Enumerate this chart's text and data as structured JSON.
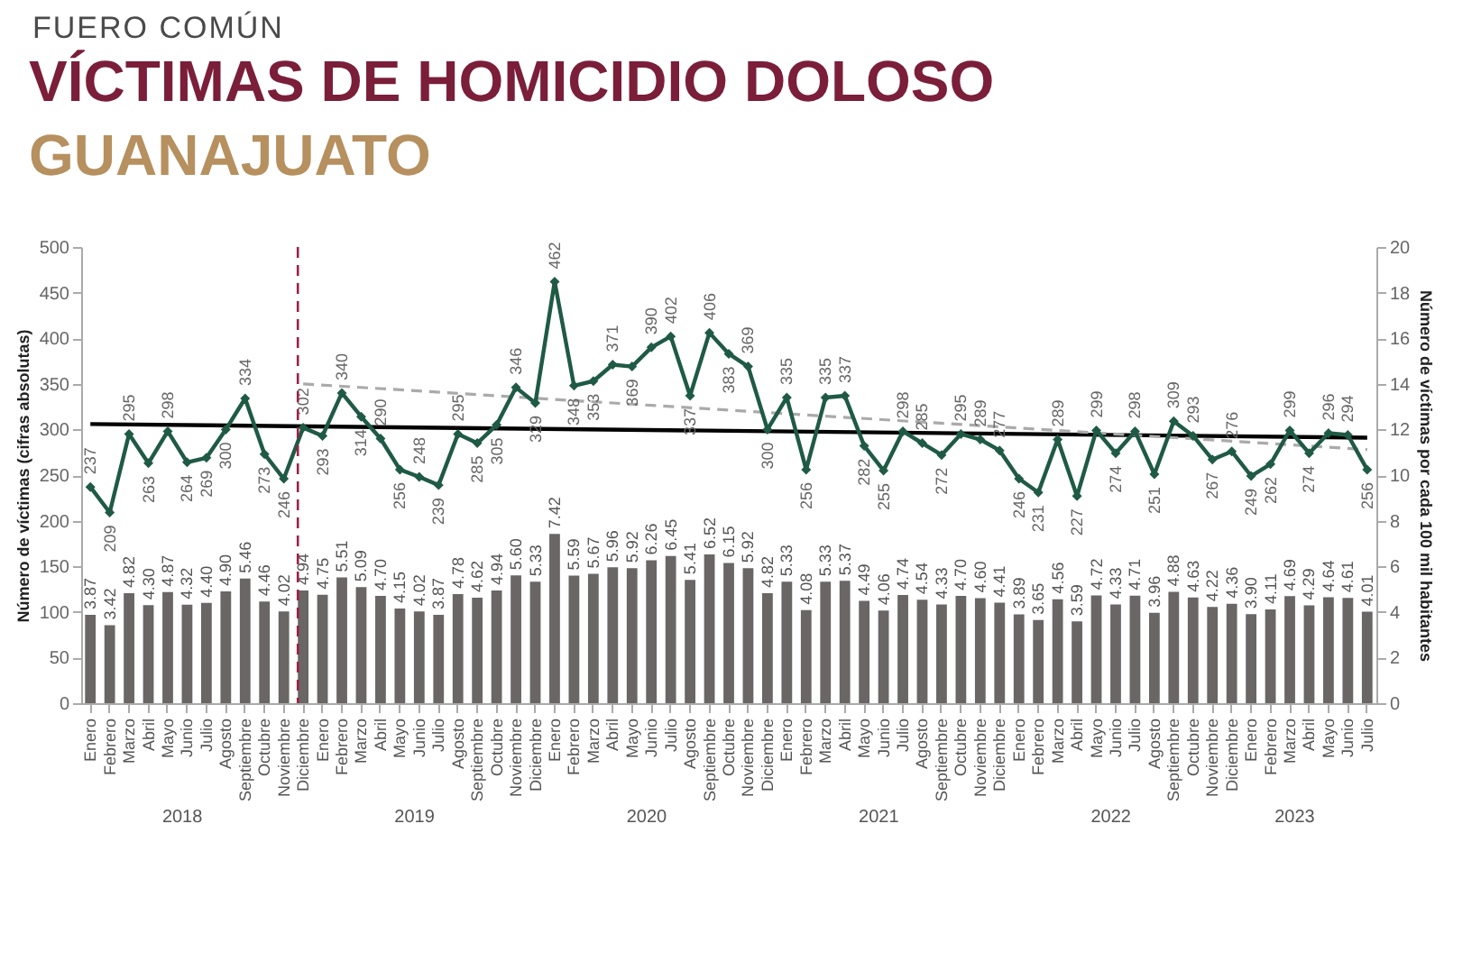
{
  "chart_data": {
    "type": "bar",
    "title": "VÍCTIMAS DE HOMICIDIO DOLOSO",
    "subtitle": "GUANAJUATO",
    "annotations": [
      "FUERO COMÚN",
      "2018",
      "2019",
      "2020",
      "2021",
      "2022",
      "2023"
    ],
    "ylabel": "Número de víctimas (cifras absolutas)",
    "y2label": "Número de víctimas por cada 100 mil habitantes",
    "ylim": [
      0,
      500
    ],
    "yticks": [
      0,
      50,
      100,
      150,
      200,
      250,
      300,
      350,
      400,
      450,
      500
    ],
    "y2lim": [
      0,
      20
    ],
    "y2ticks": [
      0,
      2,
      4,
      6,
      8,
      10,
      12,
      14,
      16,
      18,
      20
    ],
    "marker": "diamond",
    "grid": false,
    "categories": [
      "Enero",
      "Febrero",
      "Marzo",
      "Abril",
      "Mayo",
      "Junio",
      "Julio",
      "Agosto",
      "Septiembre",
      "Octubre",
      "Noviembre",
      "Diciembre",
      "Enero",
      "Febrero",
      "Marzo",
      "Abril",
      "Mayo",
      "Junio",
      "Julio",
      "Agosto",
      "Septiembre",
      "Octubre",
      "Noviembre",
      "Diciembre",
      "Enero",
      "Febrero",
      "Marzo",
      "Abril",
      "Mayo",
      "Junio",
      "Julio",
      "Agosto",
      "Septiembre",
      "Octubre",
      "Noviembre",
      "Diciembre",
      "Enero",
      "Febrero",
      "Marzo",
      "Abril",
      "Mayo",
      "Junio",
      "Julio",
      "Agosto",
      "Septiembre",
      "Octubre",
      "Noviembre",
      "Diciembre",
      "Enero",
      "Febrero",
      "Marzo",
      "Abril",
      "Mayo",
      "Junio",
      "Julio",
      "Agosto",
      "Septiembre",
      "Octubre",
      "Noviembre",
      "Diciembre",
      "Enero",
      "Febrero",
      "Marzo",
      "Abril",
      "Mayo",
      "Junio",
      "Julio"
    ],
    "series": [
      {
        "axis": "y2",
        "color": "#6a6666",
        "values": [
          3.87,
          3.42,
          4.82,
          4.3,
          4.87,
          4.32,
          4.4,
          4.9,
          5.46,
          4.46,
          4.02,
          4.94,
          4.75,
          5.51,
          5.09,
          4.7,
          4.15,
          4.02,
          3.87,
          4.78,
          4.62,
          4.94,
          5.6,
          5.33,
          7.42,
          5.59,
          5.67,
          5.96,
          5.92,
          6.26,
          6.45,
          5.41,
          6.52,
          6.15,
          5.92,
          4.82,
          5.33,
          4.08,
          5.33,
          5.37,
          4.49,
          4.06,
          4.74,
          4.54,
          4.33,
          4.7,
          4.6,
          4.41,
          3.89,
          3.65,
          4.56,
          3.59,
          4.72,
          4.33,
          4.71,
          3.96,
          4.88,
          4.63,
          4.22,
          4.36,
          3.9,
          4.11,
          4.69,
          4.29,
          4.64,
          4.61,
          4.01
        ],
        "value_labels": [
          "3.87",
          "3.42",
          "4.82",
          "4.30",
          "4.87",
          "4.32",
          "4.40",
          "4.90",
          "5.46",
          "4.46",
          "4.02",
          "4.94",
          "4.75",
          "5.51",
          "5.09",
          "4.70",
          "4.15",
          "4.02",
          "3.87",
          "4.78",
          "4.62",
          "4.94",
          "5.60",
          "5.33",
          "7.42",
          "5.59",
          "5.67",
          "5.96",
          "5.92",
          "6.26",
          "6.45",
          "5.41",
          "6.52",
          "6.15",
          "5.92",
          "4.82",
          "5.33",
          "4.08",
          "5.33",
          "5.37",
          "4.49",
          "4.06",
          "4.74",
          "4.54",
          "4.33",
          "4.70",
          "4.60",
          "4.41",
          "3.89",
          "3.65",
          "4.56",
          "3.59",
          "4.72",
          "4.33",
          "4.71",
          "3.96",
          "4.88",
          "4.63",
          "4.22",
          "4.36",
          "3.90",
          "4.11",
          "4.69",
          "4.29",
          "4.64",
          "4.61",
          "4.01"
        ]
      },
      {
        "type": "line",
        "color": "#000000",
        "marker": "none",
        "values": [
          306,
          null,
          null,
          null,
          null,
          null,
          null,
          null,
          null,
          null,
          null,
          null,
          null,
          null,
          null,
          null,
          null,
          null,
          null,
          null,
          null,
          null,
          null,
          null,
          null,
          null,
          null,
          null,
          null,
          null,
          null,
          null,
          null,
          null,
          null,
          null,
          null,
          null,
          null,
          null,
          null,
          null,
          null,
          null,
          null,
          null,
          null,
          null,
          null,
          null,
          null,
          null,
          null,
          null,
          null,
          null,
          null,
          null,
          null,
          null,
          null,
          null,
          null,
          null,
          null,
          null,
          291
        ]
      },
      {
        "type": "line",
        "color": "#aaaaaa",
        "line_style": "dashed",
        "marker": "none",
        "values": [
          null,
          null,
          null,
          null,
          null,
          null,
          null,
          null,
          null,
          null,
          null,
          350,
          null,
          null,
          null,
          null,
          null,
          null,
          null,
          null,
          null,
          null,
          null,
          null,
          null,
          null,
          null,
          null,
          null,
          null,
          null,
          null,
          null,
          null,
          null,
          null,
          null,
          null,
          null,
          null,
          null,
          null,
          null,
          null,
          null,
          null,
          null,
          null,
          null,
          null,
          null,
          null,
          null,
          null,
          null,
          null,
          null,
          null,
          null,
          null,
          null,
          null,
          null,
          null,
          null,
          null,
          278
        ]
      },
      {
        "type": "line",
        "color": "#1f5a45",
        "values": [
          237,
          209,
          295,
          263,
          298,
          264,
          269,
          300,
          334,
          273,
          246,
          302,
          293,
          340,
          314,
          290,
          256,
          248,
          239,
          295,
          285,
          305,
          346,
          329,
          462,
          348,
          353,
          371,
          369,
          390,
          402,
          337,
          406,
          383,
          369,
          300,
          335,
          256,
          335,
          337,
          282,
          255,
          298,
          285,
          272,
          295,
          289,
          277,
          246,
          231,
          289,
          227,
          299,
          274,
          298,
          251,
          309,
          293,
          267,
          276,
          249,
          262,
          299,
          274,
          296,
          294,
          256
        ],
        "value_labels": [
          "237",
          "209",
          "295",
          "263",
          "298",
          "264",
          "269",
          "300",
          "334",
          "273",
          "246",
          "302",
          "293",
          "340",
          "314",
          "290",
          "256",
          "248",
          "239",
          "295",
          "285",
          "305",
          "346",
          "329",
          "462",
          "348",
          "353",
          "371",
          "369",
          "390",
          "402",
          "337",
          "406",
          "383",
          "369",
          "300",
          "335",
          "256",
          "335",
          "337",
          "282",
          "255",
          "298",
          "285",
          "272",
          "295",
          "289",
          "277",
          "246",
          "231",
          "289",
          "227",
          "299",
          "274",
          "298",
          "251",
          "309",
          "293",
          "267",
          "276",
          "249",
          "262",
          "299",
          "274",
          "296",
          "294",
          "256"
        ]
      }
    ],
    "ref_lines": [
      {
        "axis": "x",
        "value": "Diciembre",
        "color": "#9b2247",
        "line_style": "dashed"
      }
    ]
  }
}
